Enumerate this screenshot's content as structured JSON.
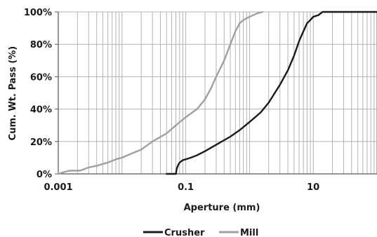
{
  "chart_data": {
    "type": "line",
    "title": "",
    "xlabel": "Aperture (mm)",
    "ylabel": "Cum. Wt. Pass (%)",
    "x_scale": "log",
    "xlim": [
      0.001,
      100
    ],
    "ylim": [
      0,
      100
    ],
    "x_ticks": [
      0.001,
      0.1,
      10
    ],
    "x_tick_labels": [
      "0.001",
      "0.1",
      "10"
    ],
    "y_ticks": [
      0,
      20,
      40,
      60,
      80,
      100
    ],
    "y_tick_labels": [
      "0%",
      "20%",
      "40%",
      "60%",
      "80%",
      "100%"
    ],
    "grid": {
      "horizontal": true,
      "vertical_minor_log": true
    },
    "legend_position": "bottom-center",
    "series": [
      {
        "name": "Crusher",
        "color": "#1a1a1a",
        "points": [
          [
            0.05,
            0
          ],
          [
            0.07,
            0
          ],
          [
            0.072,
            3
          ],
          [
            0.075,
            5
          ],
          [
            0.08,
            7
          ],
          [
            0.09,
            8.5
          ],
          [
            0.1,
            9
          ],
          [
            0.12,
            10
          ],
          [
            0.15,
            11.5
          ],
          [
            0.2,
            14
          ],
          [
            0.3,
            18
          ],
          [
            0.5,
            23
          ],
          [
            0.7,
            27
          ],
          [
            1.0,
            32
          ],
          [
            1.5,
            38
          ],
          [
            2.0,
            44
          ],
          [
            3.0,
            55
          ],
          [
            4.0,
            64
          ],
          [
            5.0,
            73
          ],
          [
            6.0,
            82
          ],
          [
            7.0,
            88
          ],
          [
            8.0,
            93
          ],
          [
            9.0,
            95
          ],
          [
            10.0,
            97
          ],
          [
            12.0,
            98
          ],
          [
            14.0,
            100
          ],
          [
            100,
            100
          ]
        ]
      },
      {
        "name": "Mill",
        "color": "#a0a0a0",
        "points": [
          [
            0.001,
            0
          ],
          [
            0.0012,
            1
          ],
          [
            0.0015,
            2
          ],
          [
            0.0022,
            2
          ],
          [
            0.003,
            4
          ],
          [
            0.004,
            5
          ],
          [
            0.006,
            7
          ],
          [
            0.008,
            9
          ],
          [
            0.01,
            10
          ],
          [
            0.015,
            13
          ],
          [
            0.02,
            15
          ],
          [
            0.03,
            20
          ],
          [
            0.05,
            25
          ],
          [
            0.07,
            30
          ],
          [
            0.1,
            35
          ],
          [
            0.15,
            40
          ],
          [
            0.2,
            46
          ],
          [
            0.25,
            53
          ],
          [
            0.3,
            60
          ],
          [
            0.4,
            70
          ],
          [
            0.5,
            80
          ],
          [
            0.6,
            88
          ],
          [
            0.7,
            93
          ],
          [
            0.8,
            95
          ],
          [
            1.0,
            97
          ],
          [
            1.3,
            99
          ],
          [
            1.6,
            100
          ]
        ]
      }
    ]
  }
}
